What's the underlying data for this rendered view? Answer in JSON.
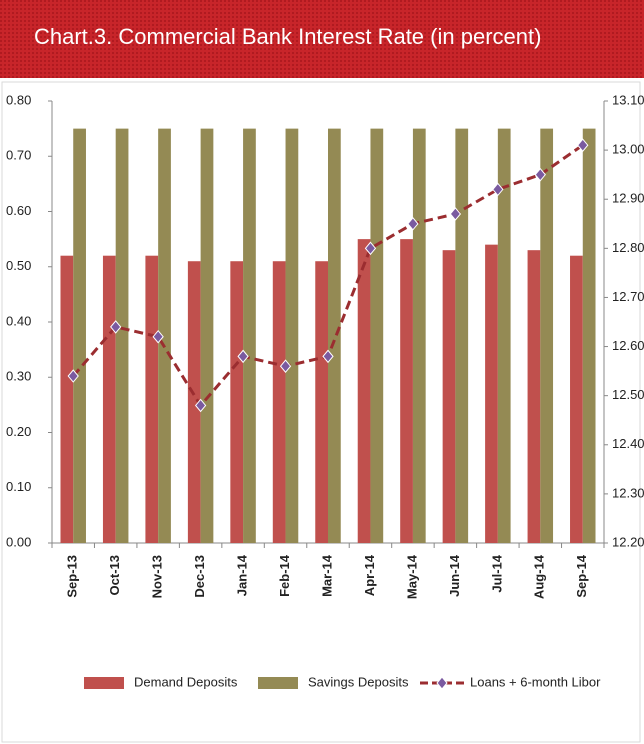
{
  "chart_data": {
    "type": "bar_line",
    "title": "Chart.3. Commercial Bank Interest Rate",
    "title_note": "(in percent)",
    "categories": [
      "Sep-13",
      "Oct-13",
      "Nov-13",
      "Dec-13",
      "Jan-14",
      "Feb-14",
      "Mar-14",
      "Apr-14",
      "May-14",
      "Jun-14",
      "Jul-14",
      "Aug-14",
      "Sep-14"
    ],
    "series": [
      {
        "name": "Demand Deposits",
        "type": "bar",
        "color": "#c0504d",
        "values": [
          0.52,
          0.52,
          0.52,
          0.51,
          0.51,
          0.51,
          0.51,
          0.55,
          0.55,
          0.53,
          0.54,
          0.53,
          0.52
        ]
      },
      {
        "name": "Savings Deposits",
        "type": "bar",
        "color": "#948a54",
        "values": [
          0.75,
          0.75,
          0.75,
          0.75,
          0.75,
          0.75,
          0.75,
          0.75,
          0.75,
          0.75,
          0.75,
          0.75,
          0.75
        ]
      },
      {
        "name": "Loans + 6-month Libor",
        "type": "line",
        "axis": "y2",
        "color": "#9b2d30",
        "marker_color": "#7a5aa0",
        "values": [
          12.54,
          12.64,
          12.62,
          12.48,
          12.58,
          12.56,
          12.58,
          12.8,
          12.85,
          12.87,
          12.92,
          12.95,
          13.01
        ]
      }
    ],
    "ylim": [
      0,
      0.8
    ],
    "yticks": [
      {
        "value": 0,
        "label": "0.00"
      },
      {
        "value": 0.1,
        "label": "0.10"
      },
      {
        "value": 0.2,
        "label": "0.20"
      },
      {
        "value": 0.3,
        "label": "0.30"
      },
      {
        "value": 0.4,
        "label": "0.40"
      },
      {
        "value": 0.5,
        "label": "0.50"
      },
      {
        "value": 0.6,
        "label": "0.60"
      },
      {
        "value": 0.7,
        "label": "0.70"
      },
      {
        "value": 0.8,
        "label": "0.80"
      }
    ],
    "y2lim": [
      12.2,
      13.1
    ],
    "y2ticks": [
      {
        "value": 12.2,
        "label": "12.20"
      },
      {
        "value": 12.3,
        "label": "12.30"
      },
      {
        "value": 12.4,
        "label": "12.40"
      },
      {
        "value": 12.5,
        "label": "12.50"
      },
      {
        "value": 12.6,
        "label": "12.60"
      },
      {
        "value": 12.7,
        "label": "12.70"
      },
      {
        "value": 12.8,
        "label": "12.80"
      },
      {
        "value": 12.9,
        "label": "12.90"
      },
      {
        "value": 13.0,
        "label": "13.00"
      },
      {
        "value": 13.1,
        "label": "13.10"
      }
    ],
    "legend": "bottom"
  }
}
